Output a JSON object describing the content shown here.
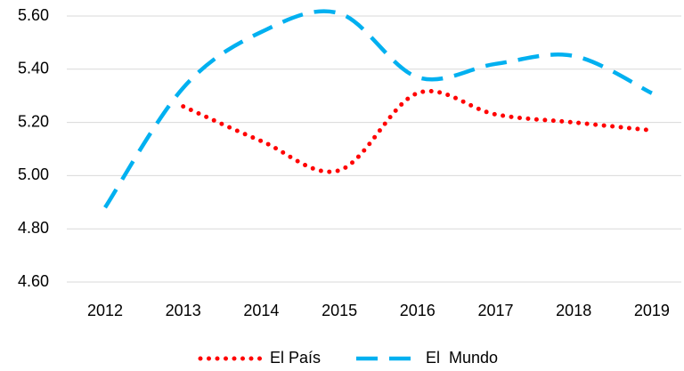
{
  "chart_data": {
    "type": "line",
    "categories": [
      "2012",
      "2013",
      "2014",
      "2015",
      "2016",
      "2017",
      "2018",
      "2019"
    ],
    "series": [
      {
        "name": "El País",
        "color": "#ff0000",
        "style": "dotted",
        "values": [
          null,
          5.26,
          5.13,
          5.02,
          5.31,
          5.23,
          5.2,
          5.17
        ]
      },
      {
        "name": "El  Mundo",
        "color": "#00b0f0",
        "style": "dashed",
        "values": [
          4.88,
          5.33,
          5.54,
          5.61,
          5.37,
          5.42,
          5.45,
          5.31
        ]
      }
    ],
    "ylim": [
      4.6,
      5.6
    ],
    "yticks": [
      {
        "value": 4.6,
        "label": "4.60"
      },
      {
        "value": 4.8,
        "label": "4.80"
      },
      {
        "value": 5.0,
        "label": "5.00"
      },
      {
        "value": 5.2,
        "label": "5.20"
      },
      {
        "value": 5.4,
        "label": "5.40"
      },
      {
        "value": 5.6,
        "label": "5.60"
      }
    ],
    "grid": true,
    "smooth": true,
    "legend": "bottom"
  }
}
